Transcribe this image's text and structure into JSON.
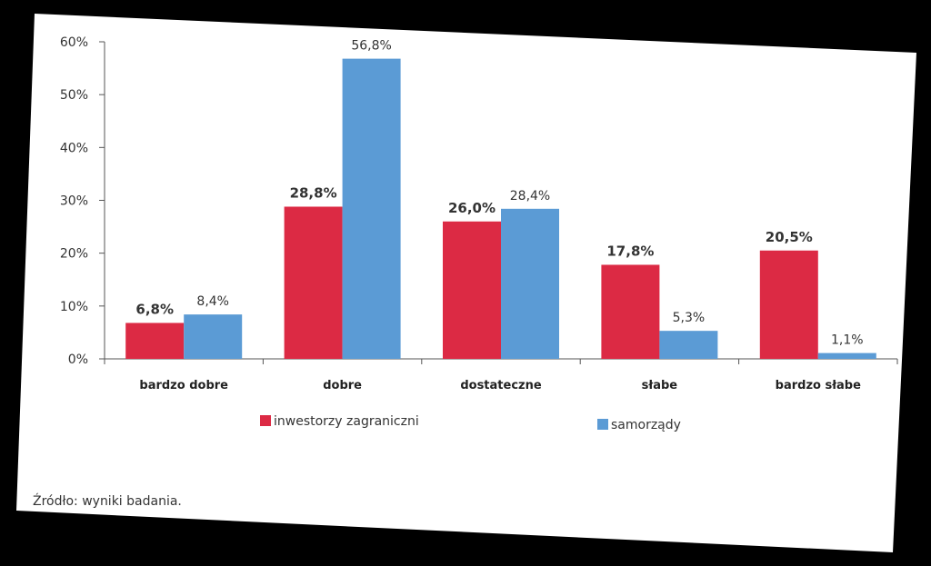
{
  "chart_data": {
    "type": "bar",
    "categories": [
      "bardzo dobre",
      "dobre",
      "dostateczne",
      "słabe",
      "bardzo słabe"
    ],
    "series": [
      {
        "name": "inwestorzy zagraniczni",
        "color": "#dc2a44",
        "values": [
          6.8,
          28.8,
          26.0,
          17.8,
          20.5
        ],
        "labels": [
          "6,8%",
          "28,8%",
          "26,0%",
          "17,8%",
          "20,5%"
        ]
      },
      {
        "name": "samorządy",
        "color": "#5b9bd5",
        "values": [
          8.4,
          56.8,
          28.4,
          5.3,
          1.1
        ],
        "labels": [
          "8,4%",
          "56,8%",
          "28,4%",
          "5,3%",
          "1,1%"
        ]
      }
    ],
    "yticks": [
      "0%",
      "10%",
      "20%",
      "30%",
      "40%",
      "50%",
      "60%"
    ],
    "ylim": [
      0,
      60
    ],
    "title": "",
    "xlabel": "",
    "ylabel": "",
    "legend": "bottom",
    "grid": false
  },
  "source_note": "Źródło: wyniki badania."
}
